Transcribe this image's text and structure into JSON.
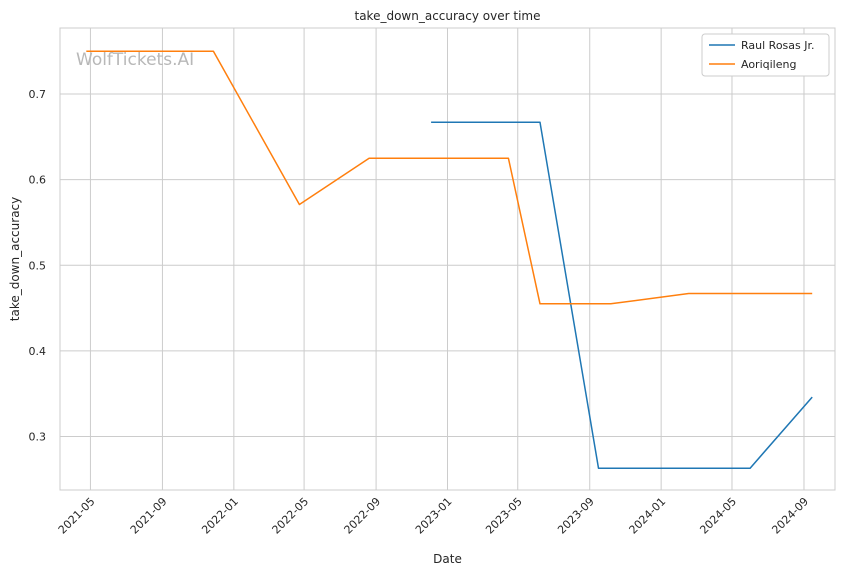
{
  "chart_data": {
    "type": "line",
    "title": "take_down_accuracy over time",
    "xlabel": "Date",
    "ylabel": "take_down_accuracy",
    "watermark": "WolfTickets.AI",
    "grid": true,
    "legend_position": "top-right",
    "x_range": [
      "2021-03-10",
      "2024-10-24"
    ],
    "y_range": [
      0.2375,
      0.7771
    ],
    "x_ticks": [
      "2021-05",
      "2021-09",
      "2022-01",
      "2022-05",
      "2022-09",
      "2023-01",
      "2023-05",
      "2023-09",
      "2024-01",
      "2024-05",
      "2024-09"
    ],
    "y_ticks": [
      0.3,
      0.4,
      0.5,
      0.6,
      0.7
    ],
    "series": [
      {
        "name": "Raul Rosas Jr.",
        "color": "#1f77b4",
        "points": [
          {
            "x": "2022-12-04",
            "y": 0.667
          },
          {
            "x": "2023-06-08",
            "y": 0.667
          },
          {
            "x": "2023-09-16",
            "y": 0.263
          },
          {
            "x": "2024-06-01",
            "y": 0.263
          },
          {
            "x": "2024-09-15",
            "y": 0.346
          }
        ]
      },
      {
        "name": "Aoriqileng",
        "color": "#ff7f0e",
        "points": [
          {
            "x": "2021-04-24",
            "y": 0.75
          },
          {
            "x": "2021-11-27",
            "y": 0.75
          },
          {
            "x": "2022-04-23",
            "y": 0.571
          },
          {
            "x": "2022-08-20",
            "y": 0.625
          },
          {
            "x": "2023-04-15",
            "y": 0.625
          },
          {
            "x": "2023-06-08",
            "y": 0.455
          },
          {
            "x": "2023-10-07",
            "y": 0.455
          },
          {
            "x": "2024-02-17",
            "y": 0.467
          },
          {
            "x": "2024-09-15",
            "y": 0.467
          }
        ]
      }
    ]
  }
}
